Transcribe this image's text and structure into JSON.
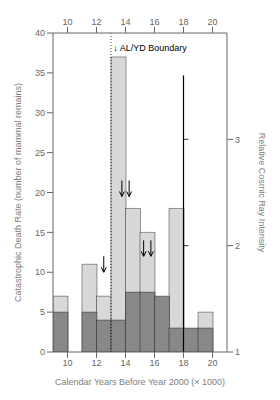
{
  "chart_data": {
    "type": "bar",
    "xlabel": "Calendar Years  Before Year 2000   (× 1000)",
    "ylabel": "Catastrophic Death Rate  (number of mammal remains)",
    "y2label": "Relative Cosmic Ray Intensity",
    "x": [
      9.5,
      11.5,
      12.5,
      13.5,
      14.5,
      15.5,
      16.5,
      17.5,
      18.5,
      19.5
    ],
    "series": [
      {
        "color": "#d8d8d8",
        "values": [
          7,
          11,
          7,
          37,
          18,
          15,
          null,
          18,
          null,
          5
        ]
      },
      {
        "color": "#888888",
        "values": [
          5,
          5,
          4,
          4,
          7.5,
          7.5,
          7,
          3,
          3,
          3
        ]
      }
    ],
    "stacked": false,
    "grid": false,
    "xlim": [
      9,
      21
    ],
    "xticks": [
      10,
      12,
      14,
      16,
      18,
      20
    ],
    "x2ticks": [
      10,
      12,
      14,
      16,
      18,
      20
    ],
    "ylim": [
      0,
      40
    ],
    "yticks": [
      0,
      5,
      10,
      15,
      20,
      25,
      30,
      35,
      40
    ],
    "y2lim": [
      1,
      4
    ],
    "y2ticks": [
      1,
      2,
      3
    ],
    "vlines": [
      {
        "x": 13.0,
        "color": "#000000",
        "line_style": "dotted"
      }
    ],
    "segments": [
      {
        "x": 18.0,
        "y": [
          1.0,
          3.6
        ],
        "axis": "y2",
        "color": "#000000",
        "ticks": [
          2.0,
          3.0
        ]
      }
    ],
    "annotations": [
      {
        "text": "↓ AL/YD Boundary",
        "x": 13.15,
        "y": 38.5
      }
    ],
    "arrows": [
      {
        "x": 12.5,
        "y": 10.0,
        "dy": 2.0
      },
      {
        "x": 13.75,
        "y": 19.5,
        "dy": 2.0
      },
      {
        "x": 14.25,
        "y": 19.5,
        "dy": 2.0
      },
      {
        "x": 15.25,
        "y": 12.0,
        "dy": 2.0
      },
      {
        "x": 15.75,
        "y": 12.0,
        "dy": 2.0
      }
    ]
  }
}
